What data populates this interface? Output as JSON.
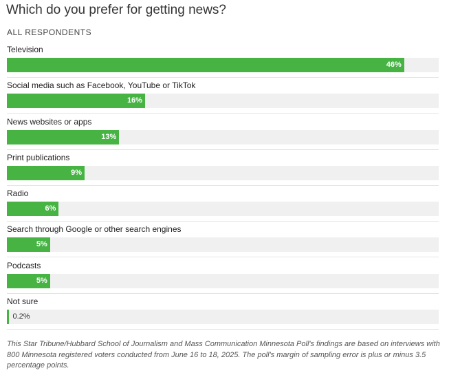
{
  "chart_data": {
    "type": "bar",
    "orientation": "horizontal",
    "title": "Which do you prefer for getting news?",
    "subtitle": "ALL RESPONDENTS",
    "categories": [
      "Television",
      "Social media such as Facebook, YouTube or TikTok",
      "News websites or apps",
      "Print publications",
      "Radio",
      "Search through Google or other search engines",
      "Podcasts",
      "Not sure"
    ],
    "values": [
      46,
      16,
      13,
      9,
      6,
      5,
      5,
      0.2
    ],
    "value_labels": [
      "46%",
      "16%",
      "13%",
      "9%",
      "6%",
      "5%",
      "5%",
      "0.2%"
    ],
    "xlim": [
      0,
      50
    ],
    "grid": false,
    "legend": "none",
    "colors": {
      "bar": "#46b343",
      "track": "#f0f0f0"
    },
    "footnote": "This Star Tribune/Hubbard School of Journalism and Mass Communication Minnesota Poll's findings are based on interviews with 800 Minnesota registered voters conducted from June 16 to 18, 2025. The poll's margin of sampling error is plus or minus 3.5 percentage points."
  }
}
